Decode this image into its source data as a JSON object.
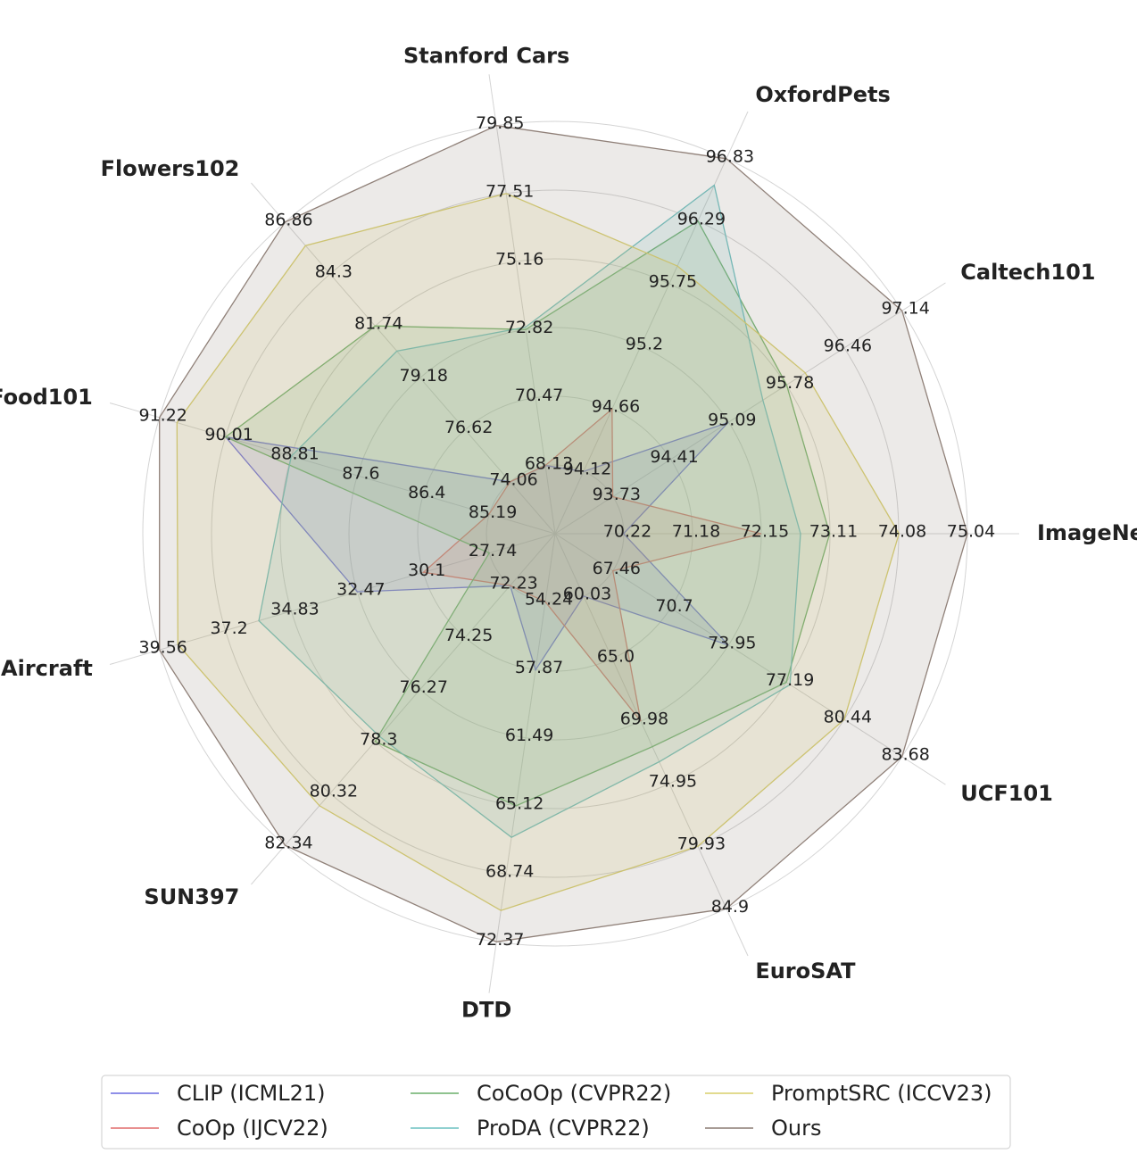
{
  "chart_data": {
    "type": "radar",
    "axes": [
      {
        "name": "ImageNet",
        "ticks": [
          "70.22",
          "71.18",
          "72.15",
          "73.11",
          "74.08",
          "75.04"
        ],
        "min": 69.26,
        "max": 75.04
      },
      {
        "name": "Caltech101",
        "ticks": [
          "93.73",
          "94.41",
          "95.09",
          "95.78",
          "96.46",
          "97.14"
        ],
        "min": 93.05,
        "max": 97.14
      },
      {
        "name": "OxfordPets",
        "ticks": [
          "94.12",
          "94.66",
          "95.2",
          "95.75",
          "96.29",
          "96.83"
        ],
        "min": 93.58,
        "max": 96.83
      },
      {
        "name": "Stanford Cars",
        "ticks": [
          "68.13",
          "70.47",
          "72.82",
          "75.16",
          "77.51",
          "79.85"
        ],
        "min": 65.78,
        "max": 79.85
      },
      {
        "name": "Flowers102",
        "ticks": [
          "74.06",
          "76.62",
          "79.18",
          "81.74",
          "84.3",
          "86.86"
        ],
        "min": 71.5,
        "max": 86.86
      },
      {
        "name": "Food101",
        "ticks": [
          "85.19",
          "86.4",
          "87.6",
          "88.81",
          "90.01",
          "91.22"
        ],
        "min": 83.98,
        "max": 91.22
      },
      {
        "name": "Aircraft",
        "ticks": [
          "27.74",
          "30.1",
          "32.47",
          "34.83",
          "37.2",
          "39.56"
        ],
        "min": 25.38,
        "max": 39.56
      },
      {
        "name": "SUN397",
        "ticks": [
          "72.23",
          "74.25",
          "76.27",
          "78.3",
          "80.32",
          "82.34"
        ],
        "min": 70.21,
        "max": 82.34
      },
      {
        "name": "DTD",
        "ticks": [
          "54.24",
          "57.87",
          "61.49",
          "65.12",
          "68.74",
          "72.37"
        ],
        "min": 50.61,
        "max": 72.37
      },
      {
        "name": "EuroSAT",
        "ticks": [
          "60.03",
          "65.0",
          "69.98",
          "74.95",
          "79.93",
          "84.9"
        ],
        "min": 55.06,
        "max": 84.9
      },
      {
        "name": "UCF101",
        "ticks": [
          "67.46",
          "70.7",
          "73.95",
          "77.19",
          "80.44",
          "83.68"
        ],
        "min": 64.22,
        "max": 83.68
      }
    ],
    "series": [
      {
        "name": "CLIP (ICML21)",
        "color": "#6a6ae0",
        "values": [
          70.22,
          95.09,
          94.12,
          68.13,
          74.06,
          90.01,
          32.47,
          72.23,
          57.87,
          60.03,
          73.95
        ]
      },
      {
        "name": "CoOp (IJCV22)",
        "color": "#e06a6a",
        "values": [
          72.15,
          93.73,
          94.66,
          68.13,
          74.06,
          85.19,
          30.1,
          72.23,
          54.24,
          69.98,
          67.46
        ]
      },
      {
        "name": "CoCoOp (CVPR22)",
        "color": "#6aaf6a",
        "values": [
          73.11,
          95.78,
          96.29,
          72.82,
          81.74,
          90.01,
          27.74,
          78.3,
          65.12,
          72.0,
          77.19
        ]
      },
      {
        "name": "ProDA (CVPR22)",
        "color": "#6ac0c0",
        "values": [
          72.7,
          95.5,
          96.6,
          72.9,
          80.5,
          88.81,
          36.0,
          78.1,
          66.8,
          73.2,
          77.4
        ]
      },
      {
        "name": "PromptSRC (ICCV23)",
        "color": "#d8cf6a",
        "values": [
          74.08,
          96.0,
          95.9,
          77.51,
          85.7,
          90.9,
          38.9,
          80.8,
          70.7,
          79.93,
          80.44
        ]
      },
      {
        "name": "Ours",
        "color": "#8a7a72",
        "values": [
          75.04,
          97.14,
          96.83,
          79.85,
          86.86,
          91.22,
          39.56,
          82.34,
          72.37,
          84.9,
          83.68
        ]
      }
    ],
    "grid": true,
    "legend_position": "bottom"
  }
}
